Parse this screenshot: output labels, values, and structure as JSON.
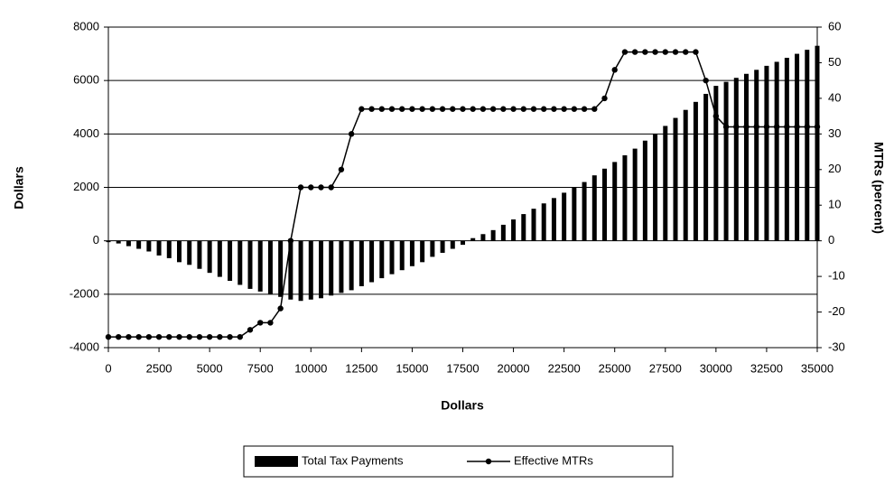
{
  "chart_data": {
    "type": "bar",
    "x": [
      0,
      500,
      1000,
      1500,
      2000,
      2500,
      3000,
      3500,
      4000,
      4500,
      5000,
      5500,
      6000,
      6500,
      7000,
      7500,
      8000,
      8500,
      9000,
      9500,
      10000,
      10500,
      11000,
      11500,
      12000,
      12500,
      13000,
      13500,
      14000,
      14500,
      15000,
      15500,
      16000,
      16500,
      17000,
      17500,
      18000,
      18500,
      19000,
      19500,
      20000,
      20500,
      21000,
      21500,
      22000,
      22500,
      23000,
      23500,
      24000,
      24500,
      25000,
      25500,
      26000,
      26500,
      27000,
      27500,
      28000,
      28500,
      29000,
      29500,
      30000,
      30500,
      31000,
      31500,
      32000,
      32500,
      33000,
      33500,
      34000,
      34500,
      35000
    ],
    "xlim": [
      0,
      35000
    ],
    "xticks": [
      0,
      2500,
      5000,
      7500,
      10000,
      12500,
      15000,
      17500,
      20000,
      22500,
      25000,
      27500,
      30000,
      32500,
      35000
    ],
    "ylim": [
      -4000,
      8000
    ],
    "yticks": [
      -4000,
      -2000,
      0,
      2000,
      4000,
      6000,
      8000
    ],
    "y2lim": [
      -30,
      60
    ],
    "y2ticks": [
      -30,
      -20,
      -10,
      0,
      10,
      20,
      30,
      40,
      50,
      60
    ],
    "xlabel": "Dollars",
    "ylabel": "Dollars",
    "y2label": "MTRs (percent)",
    "grid": true,
    "legend": "bottom",
    "series": [
      {
        "name": "Total Tax Payments",
        "type": "bar",
        "color": "#000000",
        "values": [
          -50,
          -100,
          -200,
          -300,
          -400,
          -550,
          -650,
          -800,
          -900,
          -1050,
          -1200,
          -1350,
          -1500,
          -1650,
          -1800,
          -1900,
          -2000,
          -2100,
          -2200,
          -2250,
          -2200,
          -2150,
          -2050,
          -1950,
          -1850,
          -1700,
          -1550,
          -1400,
          -1250,
          -1100,
          -950,
          -800,
          -600,
          -450,
          -300,
          -150,
          100,
          250,
          400,
          600,
          800,
          1000,
          1200,
          1400,
          1600,
          1800,
          2000,
          2200,
          2450,
          2700,
          2950,
          3200,
          3450,
          3750,
          4000,
          4300,
          4600,
          4900,
          5200,
          5500,
          5800,
          5950,
          6100,
          6250,
          6400,
          6550,
          6700,
          6850,
          7000,
          7150,
          7300
        ]
      },
      {
        "name": "Effective MTRs",
        "type": "line",
        "axis": "y2",
        "color": "#000000",
        "values": [
          -27,
          -27,
          -27,
          -27,
          -27,
          -27,
          -27,
          -27,
          -27,
          -27,
          -27,
          -27,
          -27,
          -27,
          -25,
          -23,
          -23,
          -19,
          0,
          15,
          15,
          15,
          15,
          20,
          30,
          37,
          37,
          37,
          37,
          37,
          37,
          37,
          37,
          37,
          37,
          37,
          37,
          37,
          37,
          37,
          37,
          37,
          37,
          37,
          37,
          37,
          37,
          37,
          37,
          40,
          48,
          53,
          53,
          53,
          53,
          53,
          53,
          53,
          53,
          45,
          35,
          32,
          32,
          32,
          32,
          32,
          32,
          32,
          32,
          32,
          32
        ]
      }
    ]
  }
}
